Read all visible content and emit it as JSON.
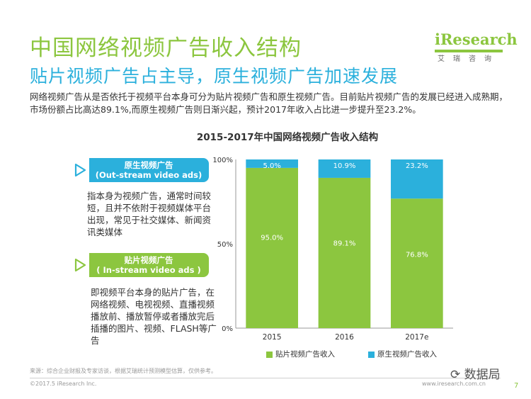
{
  "header": {
    "title": "中国网络视频广告收入结构",
    "subtitle": "贴片视频广告占主导，原生视频广告加速发展"
  },
  "logo": {
    "text": "iResearch",
    "cn": "艾瑞咨询"
  },
  "intro": "网络视频广告从是否依托于视频平台本身可分为贴片视频广告和原生视频广告。目前贴片视频广告的发展已经进入成熟期，市场份额占比高达89.1%,而原生视频广告则日渐兴起，预计2017年收入占比进一步提升至23.2%。",
  "callouts": [
    {
      "label": "原生视频广告",
      "sublabel": "(Out-stream video ads)",
      "description": "指本身为视频广告，通常时间较短，且并不依附于视频媒体平台出现，常见于社交媒体、新闻资讯类媒体"
    },
    {
      "label": "贴片视频广告",
      "sublabel": "( In-stream video ads )",
      "description": "即视频平台本身的贴片广告，在网络视频、电视视频、直播视频播放前、播放暂停或者播放完后插播的图片、视频、FLASH等广告"
    }
  ],
  "chart_data": {
    "type": "bar",
    "stacked": true,
    "title": "2015-2017年中国网络视频广告收入结构",
    "categories": [
      "2015",
      "2016",
      "2017e"
    ],
    "series": [
      {
        "name": "贴片视频广告收入",
        "values": [
          95.0,
          89.1,
          76.8
        ],
        "labels": [
          "95.0%",
          "89.1%",
          "76.8%"
        ],
        "color": "#8cc63f"
      },
      {
        "name": "原生视频广告收入",
        "values": [
          5.0,
          10.9,
          23.2
        ],
        "labels": [
          "5.0%",
          "10.9%",
          "23.2%"
        ],
        "color": "#2bb0dc"
      }
    ],
    "yticks": [
      "0%",
      "50%",
      "100%"
    ],
    "ylim": [
      0,
      100
    ],
    "grid": false,
    "legend": "bottom"
  },
  "footer": {
    "source": "来源：综合企业财报及专家访谈，根据艾瑞统计预测模型估算，仅供参考。",
    "copyright": "©2017.5 iResearch Inc.",
    "website": "www.iresearch.com.cn",
    "page": "7",
    "watermark": "数据局"
  }
}
